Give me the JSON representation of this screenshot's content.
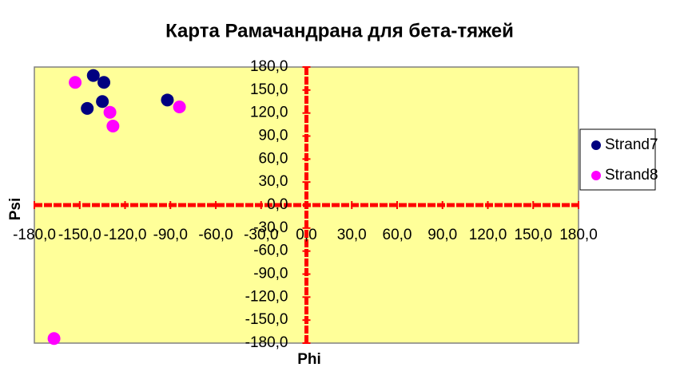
{
  "chart_data": {
    "type": "scatter",
    "title": "Карта Рамачандрана для бета-тяжей",
    "xlabel": "Phi",
    "ylabel": "Psi",
    "xlim": [
      -180,
      180
    ],
    "ylim": [
      -180,
      180
    ],
    "xticks": [
      {
        "value": -180,
        "label": "-180,0"
      },
      {
        "value": -150,
        "label": "-150,0"
      },
      {
        "value": -120,
        "label": "-120,0"
      },
      {
        "value": -90,
        "label": "-90,0"
      },
      {
        "value": -60,
        "label": "-60,0"
      },
      {
        "value": -30,
        "label": "-30,0"
      },
      {
        "value": 0,
        "label": "0,0"
      },
      {
        "value": 30,
        "label": "30,0"
      },
      {
        "value": 60,
        "label": "60,0"
      },
      {
        "value": 90,
        "label": "90,0"
      },
      {
        "value": 120,
        "label": "120,0"
      },
      {
        "value": 150,
        "label": "150,0"
      },
      {
        "value": 180,
        "label": "180,0"
      }
    ],
    "yticks": [
      {
        "value": 180,
        "label": "180,0"
      },
      {
        "value": 150,
        "label": "150,0"
      },
      {
        "value": 120,
        "label": "120,0"
      },
      {
        "value": 90,
        "label": "90,0"
      },
      {
        "value": 60,
        "label": "60,0"
      },
      {
        "value": 30,
        "label": "30,0"
      },
      {
        "value": 0,
        "label": "0,0"
      },
      {
        "value": -30,
        "label": "-30,0"
      },
      {
        "value": -60,
        "label": "-60,0"
      },
      {
        "value": -90,
        "label": "-90,0"
      },
      {
        "value": -120,
        "label": "-120,0"
      },
      {
        "value": -150,
        "label": "-150,0"
      },
      {
        "value": -180,
        "label": "-180,0"
      }
    ],
    "grid": false,
    "legend": "right",
    "series": [
      {
        "name": "Strand7",
        "color": "#000080",
        "x": [
          -141,
          -134,
          -135,
          -145,
          -92
        ],
        "values": [
          169,
          160,
          135,
          126,
          137
        ]
      },
      {
        "name": "Strand8",
        "color": "#ff00ff",
        "x": [
          -153,
          -130,
          -128,
          -84,
          -167
        ],
        "values": [
          160,
          121,
          103,
          128,
          -174
        ]
      }
    ]
  }
}
